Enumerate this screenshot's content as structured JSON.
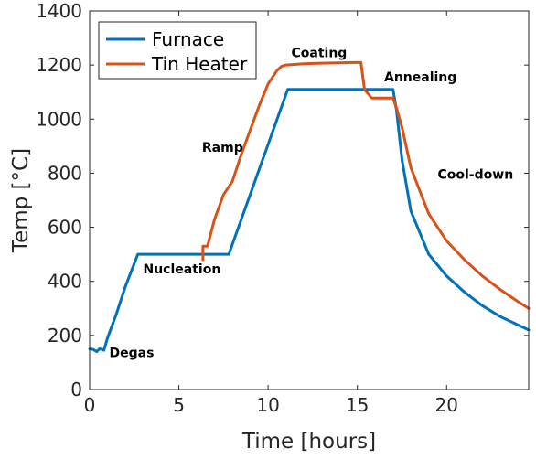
{
  "chart_data": {
    "type": "line",
    "title": "",
    "xlabel": "Time [hours]",
    "ylabel": "Temp [°C]",
    "xlim": [
      0,
      24.6
    ],
    "ylim": [
      0,
      1400
    ],
    "x_ticks": [
      "0",
      "5",
      "10",
      "15",
      "20"
    ],
    "x_tick_values": [
      0,
      5,
      10,
      15,
      20
    ],
    "y_ticks": [
      "0",
      "200",
      "400",
      "600",
      "800",
      "1000",
      "1200",
      "1400"
    ],
    "y_tick_values": [
      0,
      200,
      400,
      600,
      800,
      1000,
      1200,
      1400
    ],
    "grid": false,
    "legend_position": "top-left",
    "series": [
      {
        "name": "Furnace",
        "color": "#0072bd",
        "points": [
          [
            0,
            150
          ],
          [
            0.2,
            148
          ],
          [
            0.4,
            140
          ],
          [
            0.55,
            150
          ],
          [
            0.7,
            148
          ],
          [
            0.8,
            145
          ],
          [
            1.0,
            190
          ],
          [
            1.5,
            280
          ],
          [
            2.0,
            380
          ],
          [
            2.7,
            500
          ],
          [
            7.8,
            500
          ],
          [
            11.1,
            1110
          ],
          [
            17.0,
            1110
          ],
          [
            17.2,
            1030
          ],
          [
            17.5,
            850
          ],
          [
            18.0,
            660
          ],
          [
            19.0,
            500
          ],
          [
            20.0,
            420
          ],
          [
            21.0,
            360
          ],
          [
            22.0,
            310
          ],
          [
            23.0,
            270
          ],
          [
            24.6,
            220
          ]
        ]
      },
      {
        "name": "Tin Heater",
        "color": "#d95319",
        "points": [
          [
            6.35,
            480
          ],
          [
            6.35,
            530
          ],
          [
            6.6,
            530
          ],
          [
            7.0,
            630
          ],
          [
            7.5,
            720
          ],
          [
            8.0,
            770
          ],
          [
            8.5,
            870
          ],
          [
            9.0,
            960
          ],
          [
            9.5,
            1050
          ],
          [
            10.0,
            1130
          ],
          [
            10.5,
            1180
          ],
          [
            10.75,
            1195
          ],
          [
            11.0,
            1200
          ],
          [
            12.0,
            1205
          ],
          [
            13.0,
            1207
          ],
          [
            14.0,
            1208
          ],
          [
            15.2,
            1210
          ],
          [
            15.4,
            1110
          ],
          [
            15.8,
            1078
          ],
          [
            17.0,
            1078
          ],
          [
            17.2,
            1040
          ],
          [
            17.5,
            970
          ],
          [
            18.0,
            820
          ],
          [
            19.0,
            650
          ],
          [
            20.0,
            550
          ],
          [
            21.0,
            480
          ],
          [
            22.0,
            420
          ],
          [
            23.0,
            370
          ],
          [
            24.0,
            325
          ],
          [
            24.6,
            300
          ]
        ]
      }
    ],
    "annotations": [
      {
        "text": "Degas",
        "x": 1.1,
        "y": 120
      },
      {
        "text": "Nucleation",
        "x": 3.0,
        "y": 430
      },
      {
        "text": "Ramp",
        "x": 6.3,
        "y": 880
      },
      {
        "text": "Coating",
        "x": 11.3,
        "y": 1230
      },
      {
        "text": "Annealing",
        "x": 16.5,
        "y": 1140
      },
      {
        "text": "Cool-down",
        "x": 19.5,
        "y": 780
      }
    ]
  }
}
